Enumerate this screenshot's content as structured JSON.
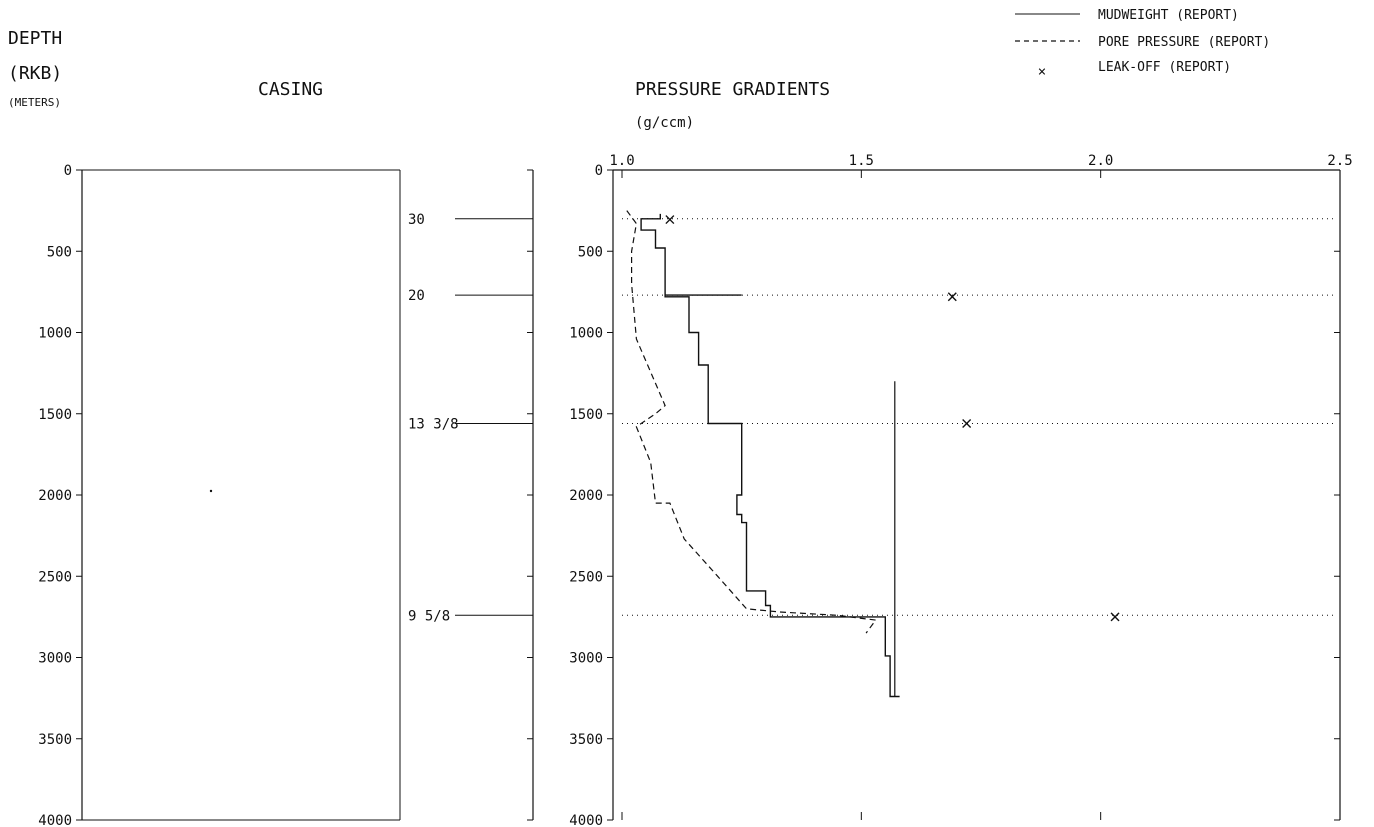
{
  "header": {
    "depth_label_1": "DEPTH",
    "depth_label_2": "(RKB)",
    "depth_label_3": "(METERS)",
    "casing_title": "CASING",
    "pressure_title": "PRESSURE GRADIENTS",
    "pressure_unit": "(g/ccm)"
  },
  "legend": {
    "mudweight": "MUDWEIGHT (REPORT)",
    "pore_pressure": "PORE PRESSURE (REPORT)",
    "leak_off": "LEAK-OFF (REPORT)",
    "position": "top-right"
  },
  "chart_data": [
    {
      "type": "table",
      "name": "casing",
      "y_axis": {
        "label": "DEPTH (RKB) (METERS)",
        "range": [
          0,
          4000
        ],
        "ticks": [
          0,
          500,
          1000,
          1500,
          2000,
          2500,
          3000,
          3500,
          4000
        ]
      },
      "casing_points": [
        {
          "label": "30",
          "depth": 300
        },
        {
          "label": "20",
          "depth": 770
        },
        {
          "label": "13 3/8",
          "depth": 1560
        },
        {
          "label": "9 5/8",
          "depth": 2740
        }
      ]
    },
    {
      "type": "line",
      "name": "pressure_gradients",
      "x_axis": {
        "label": "(g/ccm)",
        "range": [
          1.0,
          2.5
        ],
        "ticks": [
          "1.0",
          "1.5",
          "2.0",
          "2.5"
        ]
      },
      "y_axis": {
        "range": [
          0,
          4000
        ],
        "ticks": [
          0,
          500,
          1000,
          1500,
          2000,
          2500,
          3000,
          3500,
          4000
        ]
      },
      "grid": "dotted at casing depths",
      "casing_depths": [
        300,
        770,
        1560,
        2740
      ],
      "mudweight": [
        [
          1.08,
          270
        ],
        [
          1.08,
          300
        ],
        [
          1.04,
          300
        ],
        [
          1.04,
          370
        ],
        [
          1.07,
          370
        ],
        [
          1.07,
          480
        ],
        [
          1.09,
          480
        ],
        [
          1.09,
          620
        ],
        [
          1.09,
          770
        ],
        [
          1.25,
          770
        ],
        [
          1.09,
          770
        ],
        [
          1.09,
          780
        ],
        [
          1.14,
          780
        ],
        [
          1.14,
          1000
        ],
        [
          1.16,
          1000
        ],
        [
          1.16,
          1200
        ],
        [
          1.18,
          1200
        ],
        [
          1.18,
          1380
        ],
        [
          1.18,
          1560
        ],
        [
          1.25,
          1560
        ],
        [
          1.25,
          2000
        ],
        [
          1.24,
          2000
        ],
        [
          1.24,
          2120
        ],
        [
          1.25,
          2120
        ],
        [
          1.25,
          2170
        ],
        [
          1.26,
          2170
        ],
        [
          1.26,
          2590
        ],
        [
          1.3,
          2590
        ],
        [
          1.3,
          2680
        ],
        [
          1.31,
          2680
        ],
        [
          1.31,
          2750
        ],
        [
          1.55,
          2750
        ],
        [
          1.55,
          2990
        ],
        [
          1.56,
          2990
        ],
        [
          1.56,
          3240
        ],
        [
          1.58,
          3240
        ]
      ],
      "pore_pressure": [
        [
          1.01,
          250
        ],
        [
          1.03,
          330
        ],
        [
          1.02,
          500
        ],
        [
          1.02,
          700
        ],
        [
          1.03,
          1040
        ],
        [
          1.09,
          1450
        ],
        [
          1.07,
          1500
        ],
        [
          1.03,
          1580
        ],
        [
          1.06,
          1800
        ],
        [
          1.07,
          2050
        ],
        [
          1.1,
          2050
        ],
        [
          1.13,
          2270
        ],
        [
          1.2,
          2500
        ],
        [
          1.26,
          2700
        ],
        [
          1.33,
          2720
        ],
        [
          1.45,
          2740
        ],
        [
          1.53,
          2770
        ],
        [
          1.51,
          2850
        ]
      ],
      "lot_line": [
        [
          1.57,
          1300
        ],
        [
          1.57,
          3240
        ]
      ],
      "leak_off": [
        {
          "x": 1.1,
          "y": 305
        },
        {
          "x": 1.69,
          "y": 780
        },
        {
          "x": 1.72,
          "y": 1560
        },
        {
          "x": 2.03,
          "y": 2750
        }
      ]
    }
  ]
}
